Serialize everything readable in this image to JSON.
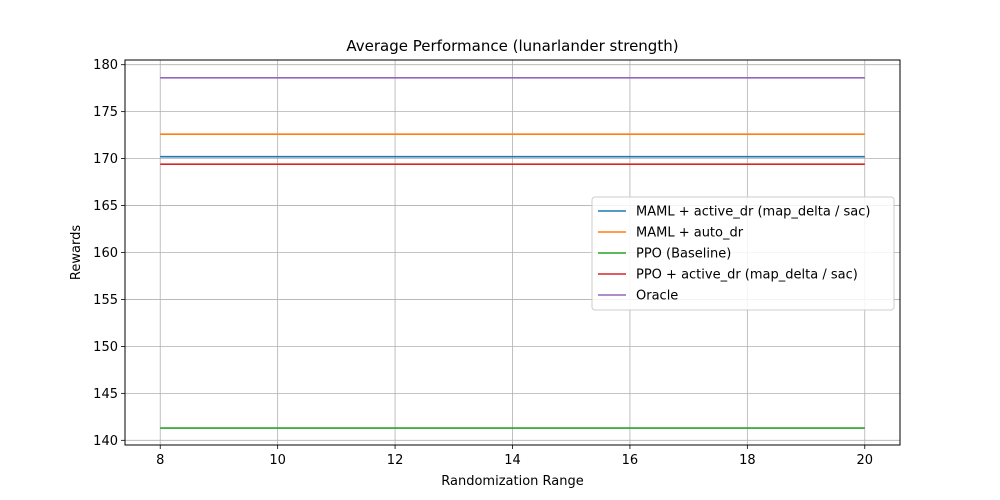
{
  "chart_data": {
    "type": "line",
    "title": "Average Performance (lunarlander strength)",
    "xlabel": "Randomization Range",
    "ylabel": "Rewards",
    "xlim": [
      7.4,
      20.6
    ],
    "ylim": [
      139.5,
      180.5
    ],
    "x_ticks": [
      8,
      10,
      12,
      14,
      16,
      18,
      20
    ],
    "y_ticks": [
      140,
      145,
      150,
      155,
      160,
      165,
      170,
      175,
      180
    ],
    "grid": true,
    "legend_position": "center-right",
    "x": [
      8,
      20
    ],
    "series": [
      {
        "name": "MAML + active_dr (map_delta / sac)",
        "color": "#1f77b4",
        "values": [
          170.2,
          170.2
        ]
      },
      {
        "name": "MAML + auto_dr",
        "color": "#ff7f0e",
        "values": [
          172.6,
          172.6
        ]
      },
      {
        "name": "PPO (Baseline)",
        "color": "#2ca02c",
        "values": [
          141.3,
          141.3
        ]
      },
      {
        "name": "PPO + active_dr (map_delta / sac)",
        "color": "#d62728",
        "values": [
          169.4,
          169.4
        ]
      },
      {
        "name": "Oracle",
        "color": "#9467bd",
        "values": [
          178.6,
          178.6
        ]
      }
    ]
  }
}
